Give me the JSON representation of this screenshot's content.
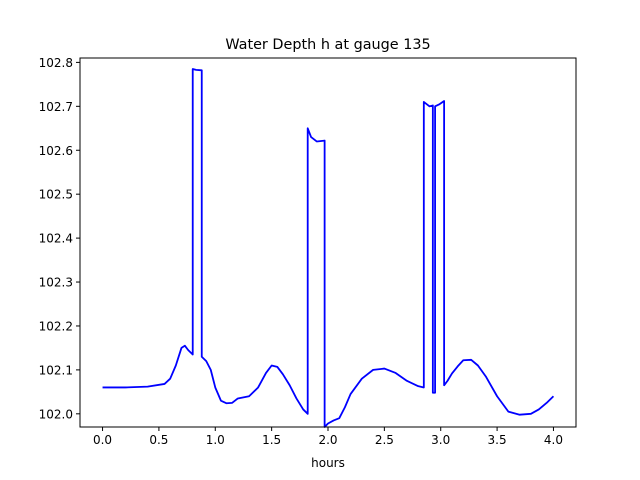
{
  "chart_data": {
    "type": "line",
    "title": "Water Depth h at gauge 135",
    "xlabel": "hours",
    "ylabel": "",
    "xlim": [
      -0.2,
      4.2
    ],
    "ylim": [
      101.97,
      102.81
    ],
    "xticks": [
      0.0,
      0.5,
      1.0,
      1.5,
      2.0,
      2.5,
      3.0,
      3.5,
      4.0
    ],
    "xtick_labels": [
      "0.0",
      "0.5",
      "1.0",
      "1.5",
      "2.0",
      "2.5",
      "3.0",
      "3.5",
      "4.0"
    ],
    "yticks": [
      102.0,
      102.1,
      102.2,
      102.3,
      102.4,
      102.5,
      102.6,
      102.7,
      102.8
    ],
    "ytick_labels": [
      "102.0",
      "102.1",
      "102.2",
      "102.3",
      "102.4",
      "102.5",
      "102.6",
      "102.7",
      "102.8"
    ],
    "grid": false,
    "legend": "none",
    "line_color": "#0000ff",
    "series": [
      {
        "x": [
          0.0,
          0.2,
          0.4,
          0.55,
          0.6,
          0.65,
          0.7,
          0.73,
          0.76,
          0.8,
          0.8,
          0.83,
          0.88,
          0.88,
          0.92,
          0.96,
          1.0,
          1.05,
          1.1,
          1.15,
          1.2,
          1.3,
          1.38,
          1.45,
          1.5,
          1.55,
          1.6,
          1.66,
          1.72,
          1.78,
          1.82,
          1.82,
          1.85,
          1.9,
          1.97,
          1.97,
          2.0,
          2.05,
          2.1,
          2.15,
          2.2,
          2.3,
          2.4,
          2.5,
          2.6,
          2.7,
          2.8,
          2.85,
          2.85,
          2.9,
          2.93,
          2.93,
          2.95,
          2.95,
          2.99,
          3.03,
          3.03,
          3.06,
          3.1,
          3.15,
          3.2,
          3.27,
          3.33,
          3.4,
          3.5,
          3.6,
          3.7,
          3.8,
          3.87,
          3.94,
          4.0
        ],
        "y": [
          102.06,
          102.06,
          102.062,
          102.068,
          102.08,
          102.11,
          102.15,
          102.155,
          102.145,
          102.135,
          102.785,
          102.783,
          102.782,
          102.13,
          102.12,
          102.1,
          102.06,
          102.03,
          102.024,
          102.025,
          102.035,
          102.04,
          102.06,
          102.093,
          102.11,
          102.107,
          102.09,
          102.065,
          102.035,
          102.01,
          102.0,
          102.65,
          102.63,
          102.62,
          102.622,
          101.97,
          101.978,
          101.985,
          101.99,
          102.015,
          102.045,
          102.08,
          102.1,
          102.103,
          102.093,
          102.075,
          102.063,
          102.06,
          102.71,
          102.7,
          102.702,
          102.048,
          102.048,
          102.7,
          102.705,
          102.712,
          102.065,
          102.075,
          102.092,
          102.108,
          102.122,
          102.123,
          102.11,
          102.085,
          102.04,
          102.005,
          101.998,
          102.0,
          102.01,
          102.025,
          102.04
        ]
      }
    ]
  }
}
